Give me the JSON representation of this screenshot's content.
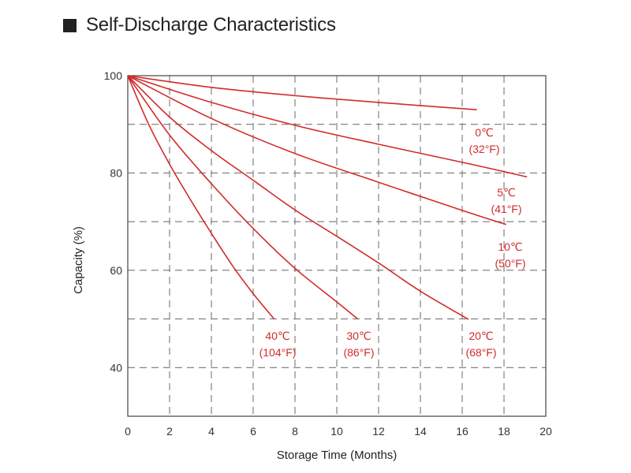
{
  "title": "Self-Discharge Characteristics",
  "colors": {
    "curve": "#d22b2b",
    "grid": "#777777",
    "text": "#222222"
  },
  "chart_data": {
    "type": "line",
    "title": "Self-Discharge Characteristics",
    "xlabel": "Storage Time (Months)",
    "ylabel": "Capacity (%)",
    "xlim": [
      0,
      20
    ],
    "ylim": [
      30,
      100
    ],
    "x_ticks": [
      "0",
      "2",
      "4",
      "6",
      "8",
      "10",
      "12",
      "14",
      "16",
      "18",
      "20"
    ],
    "y_ticks": [
      "40",
      "60",
      "80",
      "100"
    ],
    "grid": true,
    "series": [
      {
        "name": "0°C (32°F)",
        "label_line1": "0℃",
        "label_line2": "(32°F)",
        "x": [
          0,
          4,
          8,
          12,
          16.7
        ],
        "y": [
          100,
          97.6,
          95.9,
          94.5,
          93.0
        ]
      },
      {
        "name": "5°C (41°F)",
        "label_line1": "5℃",
        "label_line2": "(41°F)",
        "x": [
          0,
          4,
          8,
          12,
          16,
          19.1
        ],
        "y": [
          100,
          94.5,
          89.8,
          85.9,
          82.2,
          79.2
        ]
      },
      {
        "name": "10°C (50°F)",
        "label_line1": "10℃",
        "label_line2": "(50°F)",
        "x": [
          0,
          4,
          8,
          12,
          16,
          18.1
        ],
        "y": [
          100,
          91.2,
          84.0,
          78.1,
          72.3,
          69.4
        ]
      },
      {
        "name": "20°C (68°F)",
        "label_line1": "20℃",
        "label_line2": "(68°F)",
        "x": [
          0,
          2,
          4,
          6,
          8,
          10,
          12,
          14,
          16.3
        ],
        "y": [
          100,
          91.5,
          84.6,
          78.5,
          72.4,
          67.0,
          61.5,
          55.7,
          49.9
        ]
      },
      {
        "name": "30°C (86°F)",
        "label_line1": "30℃",
        "label_line2": "(86°F)",
        "x": [
          0,
          2,
          4,
          6,
          8,
          10,
          11.0
        ],
        "y": [
          100,
          87.8,
          77.8,
          68.6,
          60.4,
          53.5,
          50.0
        ]
      },
      {
        "name": "40°C (104°F)",
        "label_line1": "40℃",
        "label_line2": "(104°F)",
        "x": [
          0,
          1,
          2,
          3,
          4,
          5,
          6,
          7.0
        ],
        "y": [
          100,
          90.0,
          81.8,
          74.5,
          67.6,
          61.0,
          55.2,
          50.0
        ]
      }
    ]
  }
}
